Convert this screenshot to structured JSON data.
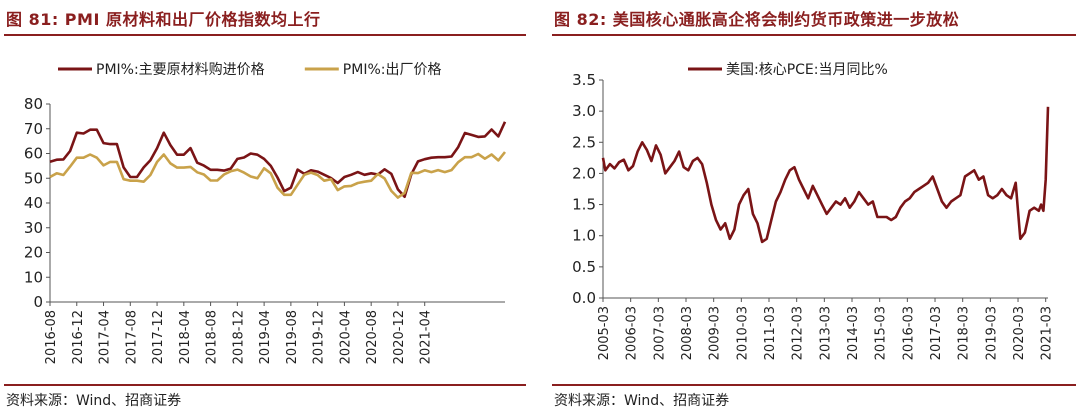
{
  "left": {
    "title": "图 81:  PMI 原材料和出厂价格指数均上行",
    "source": "资料来源：Wind、招商证券"
  },
  "right": {
    "title": "图 82:  美国核心通胀高企将会制约货币政策进一步放松",
    "source": "资料来源：Wind、招商证券"
  },
  "chart_data": [
    {
      "type": "line",
      "legend_position": "top",
      "ylim": [
        0,
        80
      ],
      "yticks": [
        0,
        10,
        20,
        30,
        40,
        50,
        60,
        70,
        80
      ],
      "x_start": "2016-08",
      "x_tick_labels": [
        "2016-08",
        "2016-12",
        "2017-04",
        "2017-08",
        "2017-12",
        "2018-04",
        "2018-08",
        "2018-12",
        "2019-04",
        "2019-08",
        "2019-12",
        "2020-04",
        "2020-08",
        "2020-12",
        "2021-04"
      ],
      "tick_interval_months": 4,
      "series": [
        {
          "name": "PMI%:主要原材料购进价格",
          "color": "#7a1416",
          "values": [
            56.7,
            57.5,
            57.6,
            61.0,
            68.4,
            68.1,
            69.6,
            69.6,
            64.2,
            63.8,
            63.8,
            54.4,
            50.5,
            50.5,
            54.4,
            57.3,
            62.2,
            68.4,
            63.4,
            59.5,
            59.5,
            62.2,
            56.3,
            55.1,
            53.4,
            53.4,
            53.1,
            53.9,
            57.8,
            58.4,
            60.0,
            59.5,
            57.8,
            55.0,
            50.3,
            44.8,
            46.2,
            53.5,
            51.8,
            53.2,
            52.7,
            51.4,
            50.1,
            48.1,
            50.5,
            51.4,
            52.5,
            51.4,
            52.0,
            51.5,
            53.6,
            51.8,
            45.5,
            42.5,
            51.6,
            56.8,
            57.7,
            58.3,
            58.5,
            58.5,
            58.8,
            62.6,
            68.3,
            67.5,
            66.7,
            66.9,
            69.7,
            66.9,
            72.8
          ]
        },
        {
          "name": "PMI%:出厂价格",
          "color": "#c9a24a",
          "values": [
            50.5,
            52.0,
            51.3,
            54.7,
            58.3,
            58.3,
            59.6,
            58.3,
            55.2,
            56.6,
            56.6,
            49.6,
            49.0,
            49.0,
            48.6,
            51.3,
            56.6,
            59.6,
            56.0,
            54.3,
            54.3,
            54.6,
            52.4,
            51.5,
            49.1,
            49.1,
            51.5,
            52.8,
            53.5,
            52.3,
            50.7,
            50.0,
            54.0,
            52.0,
            46.2,
            43.3,
            43.3,
            47.4,
            51.4,
            52.3,
            51.3,
            49.0,
            49.6,
            45.2,
            46.7,
            46.9,
            48.1,
            48.6,
            49.0,
            51.7,
            49.9,
            44.9,
            42.2,
            44.1,
            52.2,
            52.1,
            53.2,
            52.5,
            53.3,
            52.5,
            53.3,
            56.5,
            58.5,
            58.5,
            59.8,
            57.9,
            59.6,
            57.2,
            60.6
          ]
        }
      ]
    },
    {
      "type": "line",
      "legend_position": "top",
      "ylim": [
        0.0,
        3.5
      ],
      "yticks": [
        "0.0",
        "0.5",
        "1.0",
        "1.5",
        "2.0",
        "2.5",
        "3.0",
        "3.5"
      ],
      "x_start": "2005-03",
      "x_tick_labels": [
        "2005-03",
        "2006-03",
        "2007-03",
        "2008-03",
        "2009-03",
        "2010-03",
        "2011-03",
        "2012-03",
        "2013-03",
        "2014-03",
        "2015-03",
        "2016-03",
        "2017-03",
        "2018-03",
        "2019-03",
        "2020-03",
        "2021-03"
      ],
      "series": [
        {
          "name": "美国:核心PCE:当月同比%",
          "color": "#7a1416",
          "monthly": false,
          "points": [
            [
              "2005-03",
              2.25
            ],
            [
              "2005-04",
              2.05
            ],
            [
              "2005-06",
              2.15
            ],
            [
              "2005-08",
              2.08
            ],
            [
              "2005-10",
              2.18
            ],
            [
              "2005-12",
              2.22
            ],
            [
              "2006-02",
              2.05
            ],
            [
              "2006-04",
              2.12
            ],
            [
              "2006-06",
              2.35
            ],
            [
              "2006-08",
              2.5
            ],
            [
              "2006-10",
              2.38
            ],
            [
              "2006-12",
              2.2
            ],
            [
              "2007-02",
              2.45
            ],
            [
              "2007-04",
              2.3
            ],
            [
              "2007-06",
              2.0
            ],
            [
              "2007-08",
              2.1
            ],
            [
              "2007-10",
              2.2
            ],
            [
              "2007-12",
              2.35
            ],
            [
              "2008-02",
              2.1
            ],
            [
              "2008-04",
              2.05
            ],
            [
              "2008-06",
              2.2
            ],
            [
              "2008-08",
              2.25
            ],
            [
              "2008-10",
              2.15
            ],
            [
              "2008-12",
              1.85
            ],
            [
              "2009-02",
              1.5
            ],
            [
              "2009-04",
              1.25
            ],
            [
              "2009-06",
              1.1
            ],
            [
              "2009-08",
              1.2
            ],
            [
              "2009-10",
              0.95
            ],
            [
              "2009-12",
              1.1
            ],
            [
              "2010-02",
              1.5
            ],
            [
              "2010-04",
              1.65
            ],
            [
              "2010-06",
              1.75
            ],
            [
              "2010-08",
              1.35
            ],
            [
              "2010-10",
              1.2
            ],
            [
              "2010-12",
              0.9
            ],
            [
              "2011-02",
              0.95
            ],
            [
              "2011-04",
              1.25
            ],
            [
              "2011-06",
              1.55
            ],
            [
              "2011-08",
              1.7
            ],
            [
              "2011-10",
              1.9
            ],
            [
              "2011-12",
              2.05
            ],
            [
              "2012-02",
              2.1
            ],
            [
              "2012-04",
              1.9
            ],
            [
              "2012-06",
              1.75
            ],
            [
              "2012-08",
              1.6
            ],
            [
              "2012-10",
              1.8
            ],
            [
              "2012-12",
              1.65
            ],
            [
              "2013-02",
              1.5
            ],
            [
              "2013-04",
              1.35
            ],
            [
              "2013-06",
              1.45
            ],
            [
              "2013-08",
              1.55
            ],
            [
              "2013-10",
              1.5
            ],
            [
              "2013-12",
              1.6
            ],
            [
              "2014-02",
              1.45
            ],
            [
              "2014-04",
              1.55
            ],
            [
              "2014-06",
              1.7
            ],
            [
              "2014-08",
              1.6
            ],
            [
              "2014-10",
              1.5
            ],
            [
              "2014-12",
              1.55
            ],
            [
              "2015-02",
              1.3
            ],
            [
              "2015-04",
              1.3
            ],
            [
              "2015-06",
              1.3
            ],
            [
              "2015-08",
              1.25
            ],
            [
              "2015-10",
              1.3
            ],
            [
              "2015-12",
              1.45
            ],
            [
              "2016-02",
              1.55
            ],
            [
              "2016-04",
              1.6
            ],
            [
              "2016-06",
              1.7
            ],
            [
              "2016-08",
              1.75
            ],
            [
              "2016-10",
              1.8
            ],
            [
              "2016-12",
              1.85
            ],
            [
              "2017-02",
              1.95
            ],
            [
              "2017-04",
              1.75
            ],
            [
              "2017-06",
              1.55
            ],
            [
              "2017-08",
              1.45
            ],
            [
              "2017-10",
              1.55
            ],
            [
              "2017-12",
              1.6
            ],
            [
              "2018-02",
              1.65
            ],
            [
              "2018-04",
              1.95
            ],
            [
              "2018-06",
              2.0
            ],
            [
              "2018-08",
              2.05
            ],
            [
              "2018-10",
              1.9
            ],
            [
              "2018-12",
              1.95
            ],
            [
              "2019-02",
              1.65
            ],
            [
              "2019-04",
              1.6
            ],
            [
              "2019-06",
              1.65
            ],
            [
              "2019-08",
              1.75
            ],
            [
              "2019-10",
              1.65
            ],
            [
              "2019-12",
              1.6
            ],
            [
              "2020-02",
              1.85
            ],
            [
              "2020-04",
              0.95
            ],
            [
              "2020-06",
              1.05
            ],
            [
              "2020-08",
              1.4
            ],
            [
              "2020-10",
              1.45
            ],
            [
              "2020-12",
              1.4
            ],
            [
              "2021-01",
              1.5
            ],
            [
              "2021-02",
              1.4
            ],
            [
              "2021-03",
              1.9
            ],
            [
              "2021-04",
              3.07
            ]
          ]
        }
      ]
    }
  ]
}
